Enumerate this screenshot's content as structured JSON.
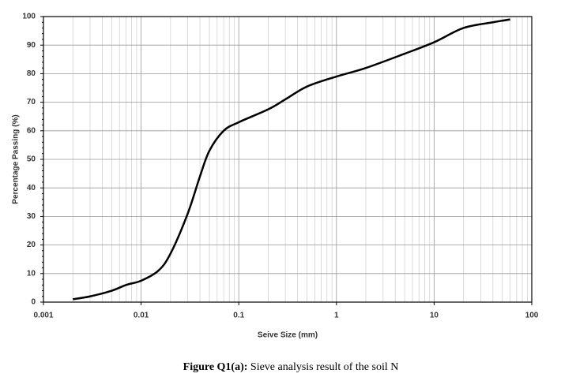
{
  "chart_data": {
    "type": "line",
    "x_label": "Seive Size (mm)",
    "y_label": "Percentage Passing (%)",
    "caption_label": "Figure Q1(a):",
    "caption_text": "Sieve analysis result of the soil N",
    "x_scale": "log",
    "grid": true,
    "minor_grid": true,
    "xlim": [
      0.001,
      100
    ],
    "xticks": [
      0.001,
      0.01,
      0.1,
      1,
      10,
      100
    ],
    "ylim": [
      0,
      100
    ],
    "yticks": [
      0,
      10,
      20,
      30,
      40,
      50,
      60,
      70,
      80,
      90,
      100
    ],
    "series": [
      {
        "color": "#000000",
        "x": [
          0.002,
          0.003,
          0.005,
          0.007,
          0.01,
          0.015,
          0.02,
          0.03,
          0.04,
          0.05,
          0.07,
          0.1,
          0.2,
          0.3,
          0.5,
          1,
          2,
          5,
          10,
          20,
          40,
          60
        ],
        "values": [
          1,
          2,
          4,
          6,
          7.5,
          11,
          17,
          31,
          44,
          53,
          60,
          63,
          67.5,
          71,
          75.5,
          79,
          82,
          87,
          91,
          96,
          98,
          99
        ]
      }
    ]
  }
}
